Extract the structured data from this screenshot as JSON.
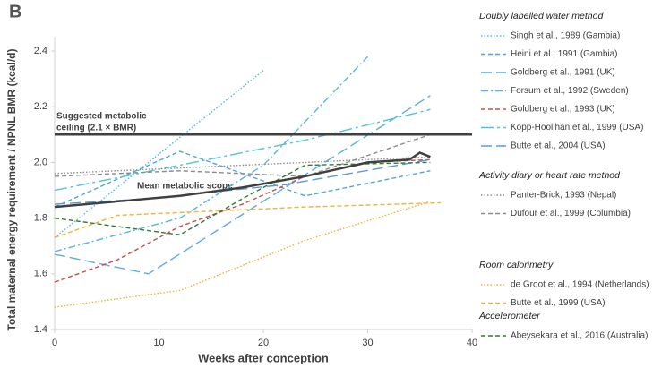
{
  "chart_data": {
    "type": "line",
    "panel_label": "B",
    "y_label": "Total maternal energy requirement / NPNL BMR (kcal/d)",
    "x_label": "Weeks after conception",
    "xlim": [
      0,
      40
    ],
    "xticks": [
      0,
      10,
      20,
      30,
      40
    ],
    "ylim": [
      1.4,
      2.45
    ],
    "yticks": [
      1.4,
      1.6,
      1.8,
      {
        "value": 2,
        "label": "2.0"
      },
      2.2,
      2.4
    ],
    "grid": false,
    "reference_line": {
      "value": 2.1,
      "color": "#404040",
      "label_lines": [
        "Suggested metabolic",
        "ceiling (2.1 × BMR)"
      ]
    },
    "mean": {
      "label": "Mean metabolic scope",
      "color": "#404040",
      "x": [
        0,
        6,
        12,
        18,
        24,
        30,
        34,
        35,
        36
      ],
      "values": [
        1.84,
        1.86,
        1.88,
        1.91,
        1.95,
        2.0,
        2.01,
        2.035,
        2.02
      ]
    },
    "legend_groups": [
      {
        "title": "Doubly labelled water method",
        "series": [
          {
            "name": "Singh et al., 1989 (Gambia)",
            "color": "#4fb8e0",
            "dash": "dotted",
            "x": [
              0,
              20
            ],
            "values": [
              1.73,
              2.33
            ]
          },
          {
            "name": "Heini et al., 1991 (Gambia)",
            "color": "#4ea6dc",
            "dash": "dashed",
            "x": [
              0,
              12,
              24,
              36
            ],
            "values": [
              1.84,
              2.04,
              1.88,
              1.97
            ]
          },
          {
            "name": "Goldberg et al., 1991 (UK)",
            "color": "#5aaee0",
            "dash": "longdash",
            "x": [
              0,
              9,
              36
            ],
            "values": [
              1.67,
              1.6,
              2.24
            ]
          },
          {
            "name": "Forsum et al., 1992 (Sweden)",
            "color": "#5ab4e0",
            "dash": "dashdot",
            "x": [
              0,
              12,
              20,
              30
            ],
            "values": [
              1.68,
              1.8,
              1.99,
              2.38
            ]
          },
          {
            "name": "Goldberg et al., 1993 (UK)",
            "color": "#c0504d",
            "dash": "dashed",
            "x": [
              0,
              6,
              12,
              18,
              24,
              30,
              36
            ],
            "values": [
              1.57,
              1.65,
              1.77,
              1.85,
              1.95,
              2.0,
              2.01
            ]
          },
          {
            "name": "Kopp-Hoolihan et al., 1999 (USA)",
            "color": "#4fc3d9",
            "dash": "longdashdot",
            "x": [
              0,
              12,
              24,
              36
            ],
            "values": [
              1.9,
              1.99,
              2.08,
              2.19
            ]
          },
          {
            "name": "Butte et al., 2004 (USA)",
            "color": "#5b9bd5",
            "dash": "longdash",
            "x": [
              0,
              9,
              22,
              36
            ],
            "values": [
              1.85,
              1.87,
              1.92,
              2.01
            ]
          }
        ]
      },
      {
        "title": "Activity diary or heart rate method",
        "series": [
          {
            "name": "Panter-Brick, 1993 (Nepal)",
            "color": "#8c8c8c",
            "dash": "dotted",
            "x": [
              0,
              36
            ],
            "values": [
              1.96,
              2.02
            ]
          },
          {
            "name": "Dufour et al., 1999 (Columbia)",
            "color": "#8c8c8c",
            "dash": "dashed",
            "x": [
              0,
              12,
              24,
              36
            ],
            "values": [
              1.95,
              1.97,
              1.95,
              2.1
            ]
          }
        ]
      },
      {
        "title": "Room calorimetry",
        "series": [
          {
            "name": "de Groot et al., 1994 (Netherlands)",
            "color": "#f2b233",
            "dash": "dotted",
            "x": [
              0,
              12,
              24,
              36
            ],
            "values": [
              1.48,
              1.54,
              1.72,
              1.86
            ]
          },
          {
            "name": "Butte et al., 1999 (USA)",
            "color": "#f2b233",
            "dash": "dashed",
            "x": [
              0,
              6,
              12,
              24,
              37
            ],
            "values": [
              1.73,
              1.81,
              1.82,
              1.84,
              1.855
            ]
          }
        ]
      },
      {
        "title": "Accelerometer",
        "series": [
          {
            "name": "Abeysekara et al., 2016 (Australia)",
            "color": "#2e7d32",
            "dash": "dashed",
            "x": [
              0,
              12,
              18,
              24,
              36
            ],
            "values": [
              1.8,
              1.74,
              1.87,
              1.99,
              2.0
            ]
          }
        ]
      }
    ]
  }
}
